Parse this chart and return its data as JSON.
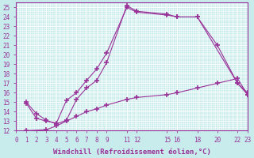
{
  "xlabel": "Windchill (Refroidissement éolien,°C)",
  "bg_color": "#c8ecec",
  "grid_color": "#b0d8d8",
  "line_color": "#993399",
  "xlim": [
    0,
    23
  ],
  "ylim": [
    12,
    25.5
  ],
  "xticks": [
    0,
    1,
    2,
    3,
    4,
    5,
    6,
    7,
    8,
    9,
    11,
    12,
    15,
    16,
    18,
    20,
    22,
    23
  ],
  "yticks": [
    12,
    13,
    14,
    15,
    16,
    17,
    18,
    19,
    20,
    21,
    22,
    23,
    24,
    25
  ],
  "line1_x": [
    1,
    2,
    3,
    4,
    5,
    6,
    7,
    8,
    9,
    11,
    12,
    15,
    16,
    18,
    22,
    23
  ],
  "line1_y": [
    15.0,
    13.8,
    13.1,
    12.7,
    13.1,
    15.3,
    16.5,
    17.3,
    19.2,
    25.2,
    24.6,
    24.3,
    24.0,
    24.0,
    17.0,
    16.0
  ],
  "line2_x": [
    1,
    2,
    3,
    4,
    5,
    6,
    7,
    8,
    9,
    11,
    12,
    15,
    16,
    18,
    20,
    22,
    23
  ],
  "line2_y": [
    14.9,
    13.3,
    13.0,
    12.8,
    15.2,
    16.0,
    17.3,
    18.5,
    20.2,
    25.0,
    24.5,
    24.2,
    24.0,
    24.0,
    21.0,
    17.0,
    15.8
  ],
  "line3_x": [
    1,
    3,
    4,
    5,
    6,
    7,
    8,
    9,
    11,
    12,
    15,
    16,
    18,
    20,
    22,
    23
  ],
  "line3_y": [
    12.0,
    12.1,
    12.5,
    13.0,
    13.5,
    14.0,
    14.3,
    14.7,
    15.3,
    15.5,
    15.8,
    16.0,
    16.5,
    17.0,
    17.5,
    15.8
  ],
  "marker": "+",
  "markersize": 4,
  "linewidth": 0.8,
  "tick_fontsize": 5.5,
  "label_fontsize": 6.5
}
